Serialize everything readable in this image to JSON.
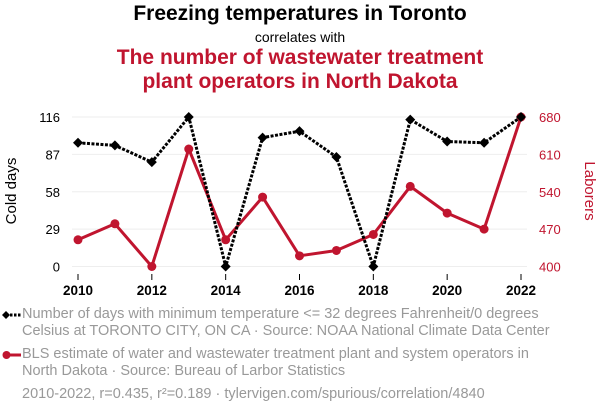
{
  "title": "Freezing temperatures in Toronto",
  "subtitle": "correlates with",
  "title2_line1": "The number of wastewater treatment",
  "title2_line2": "plant operators in North Dakota",
  "legend": [
    {
      "line1": "Number of days with minimum temperature <= 32 degrees Fahrenheit/0 degrees",
      "line2": "Celsius at TORONTO CITY, ON CA · Source: NOAA National Climate Data Center"
    },
    {
      "line1": "BLS estimate of water and wastewater treatment plant and system operators in",
      "line2": "North Dakota · Source: Bureau of Larbor Statistics"
    }
  ],
  "footer": "2010-2022, r=0.435, r²=0.189 · tylervigen.com/spurious/correlation/4840",
  "chart_data": {
    "type": "line",
    "x": [
      2010,
      2011,
      2012,
      2013,
      2014,
      2015,
      2016,
      2017,
      2018,
      2019,
      2020,
      2021,
      2022
    ],
    "x_ticks": [
      "2010",
      "2012",
      "2014",
      "2016",
      "2018",
      "2020",
      "2022"
    ],
    "ylabel_left": "Cold days",
    "ylabel_right": "Laborers",
    "yticks_left": [
      "0",
      "29",
      "58",
      "87",
      "116"
    ],
    "yticks_right": [
      "400",
      "470",
      "540",
      "610",
      "680"
    ],
    "ylim_left": [
      0,
      116
    ],
    "ylim_right": [
      400,
      680
    ],
    "grid": true,
    "series": [
      {
        "name": "Cold days",
        "axis": "left",
        "color": "#000000",
        "style": "dotted",
        "marker": "diamond",
        "values": [
          96,
          94,
          81,
          116,
          0,
          100,
          105,
          85,
          0,
          114,
          97,
          96,
          116
        ]
      },
      {
        "name": "Laborers",
        "axis": "right",
        "color": "#c0152f",
        "style": "solid",
        "marker": "circle",
        "values": [
          450,
          480,
          400,
          620,
          450,
          530,
          420,
          430,
          460,
          550,
          500,
          470,
          680
        ]
      }
    ]
  }
}
